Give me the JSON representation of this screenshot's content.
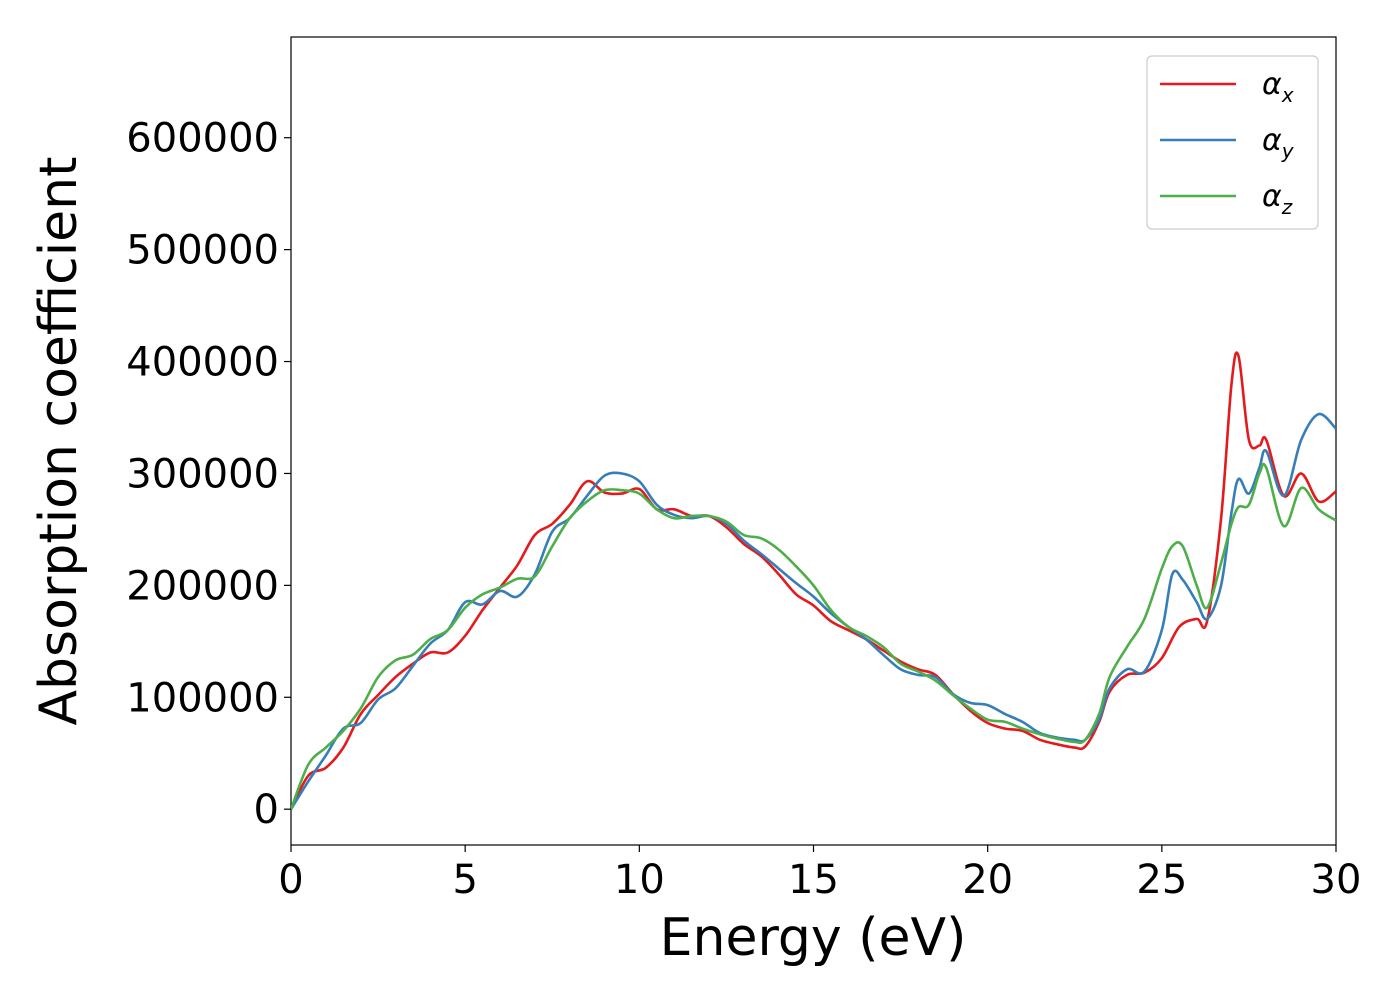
{
  "chart_data": {
    "type": "line",
    "title": "",
    "xlabel": "Energy (eV)",
    "ylabel": "Absorption coefficient",
    "xlim": [
      0,
      30
    ],
    "ylim": [
      -32000,
      690000
    ],
    "xticks": [
      0,
      5,
      10,
      15,
      20,
      25,
      30
    ],
    "yticks": [
      0,
      100000,
      200000,
      300000,
      400000,
      500000,
      600000
    ],
    "grid": false,
    "legend_position": "top-right",
    "series": [
      {
        "name": "α",
        "subscript": "x",
        "color": "#e41a1c",
        "x": [
          0,
          0.5,
          1,
          1.5,
          2,
          2.5,
          3,
          3.5,
          4,
          4.5,
          5,
          5.5,
          6,
          6.5,
          7,
          7.5,
          8,
          8.5,
          9,
          9.5,
          10,
          10.5,
          11,
          11.5,
          12,
          12.5,
          13,
          13.5,
          14,
          14.5,
          15,
          15.5,
          16,
          16.5,
          17,
          17.5,
          18,
          18.5,
          19,
          19.5,
          20,
          20.5,
          21,
          21.5,
          22,
          22.5,
          22.8,
          23.2,
          23.5,
          24,
          24.5,
          25,
          25.5,
          26,
          26.3,
          26.7,
          27,
          27.2,
          27.5,
          27.8,
          28,
          28.5,
          29,
          29.5,
          30
        ],
        "y": [
          0,
          30000,
          37000,
          55000,
          85000,
          102000,
          118000,
          130000,
          140000,
          140000,
          155000,
          178000,
          198000,
          218000,
          245000,
          255000,
          272000,
          293000,
          283000,
          282000,
          286000,
          268000,
          268000,
          262000,
          262000,
          252000,
          237000,
          226000,
          210000,
          192000,
          182000,
          168000,
          160000,
          152000,
          142000,
          132000,
          125000,
          120000,
          103000,
          88000,
          77000,
          72000,
          70000,
          62000,
          58000,
          55000,
          56000,
          78000,
          105000,
          120000,
          122000,
          135000,
          163000,
          170000,
          168000,
          260000,
          380000,
          405000,
          330000,
          325000,
          330000,
          280000,
          300000,
          275000,
          284000
        ]
      },
      {
        "name": "α",
        "subscript": "y",
        "color": "#377eb8",
        "x": [
          0,
          0.5,
          1,
          1.5,
          2,
          2.5,
          3,
          3.5,
          4,
          4.5,
          5,
          5.5,
          6,
          6.5,
          7,
          7.5,
          8,
          8.5,
          9,
          9.5,
          10,
          10.5,
          11,
          11.5,
          12,
          12.5,
          13,
          13.5,
          14,
          14.5,
          15,
          15.5,
          16,
          16.5,
          17,
          17.5,
          18,
          18.5,
          19,
          19.5,
          20,
          20.5,
          21,
          21.5,
          22,
          22.5,
          22.8,
          23.2,
          23.5,
          24,
          24.5,
          25,
          25.3,
          25.6,
          26,
          26.3,
          26.7,
          27,
          27.2,
          27.5,
          27.8,
          28,
          28.5,
          29,
          29.5,
          30
        ],
        "y": [
          0,
          25000,
          48000,
          72000,
          77000,
          98000,
          108000,
          128000,
          148000,
          160000,
          185000,
          183000,
          195000,
          190000,
          210000,
          248000,
          260000,
          280000,
          298000,
          300000,
          293000,
          272000,
          263000,
          260000,
          262000,
          255000,
          240000,
          228000,
          215000,
          202000,
          190000,
          175000,
          163000,
          152000,
          138000,
          125000,
          120000,
          118000,
          103000,
          95000,
          93000,
          85000,
          78000,
          68000,
          64000,
          62000,
          62000,
          80000,
          108000,
          125000,
          123000,
          160000,
          210000,
          205000,
          185000,
          170000,
          200000,
          265000,
          295000,
          282000,
          305000,
          320000,
          280000,
          330000,
          353000,
          340000
        ]
      },
      {
        "name": "α",
        "subscript": "z",
        "color": "#4daf4a",
        "x": [
          0,
          0.5,
          1,
          1.5,
          2,
          2.5,
          3,
          3.5,
          4,
          4.5,
          5,
          5.5,
          6,
          6.5,
          7,
          7.5,
          8,
          8.5,
          9,
          9.5,
          10,
          10.5,
          11,
          11.5,
          12,
          12.5,
          13,
          13.5,
          14,
          14.5,
          15,
          15.5,
          16,
          16.5,
          17,
          17.5,
          18,
          18.5,
          19,
          19.5,
          20,
          20.5,
          21,
          21.5,
          22,
          22.5,
          22.8,
          23.2,
          23.5,
          24,
          24.5,
          25,
          25.3,
          25.6,
          26,
          26.3,
          26.7,
          27,
          27.2,
          27.5,
          27.8,
          28,
          28.5,
          29,
          29.5,
          30
        ],
        "y": [
          0,
          40000,
          55000,
          70000,
          90000,
          118000,
          133000,
          138000,
          152000,
          160000,
          180000,
          192000,
          198000,
          206000,
          208000,
          235000,
          260000,
          275000,
          285000,
          285000,
          282000,
          268000,
          260000,
          262000,
          262000,
          257000,
          245000,
          242000,
          232000,
          217000,
          200000,
          178000,
          163000,
          155000,
          145000,
          130000,
          123000,
          115000,
          102000,
          90000,
          80000,
          78000,
          72000,
          67000,
          63000,
          60000,
          62000,
          85000,
          118000,
          145000,
          170000,
          215000,
          235000,
          235000,
          200000,
          180000,
          220000,
          255000,
          270000,
          272000,
          300000,
          305000,
          253000,
          287000,
          268000,
          258000
        ]
      }
    ]
  }
}
